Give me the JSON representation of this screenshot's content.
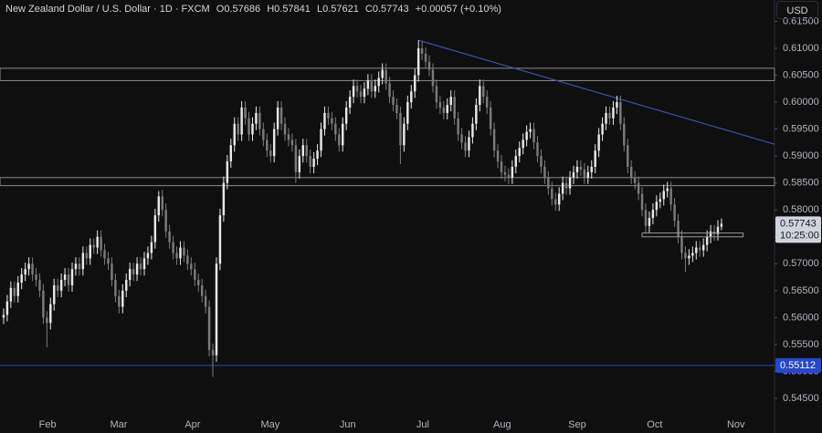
{
  "header": {
    "symbol": "New Zealand Dollar / U.S. Dollar · 1D · FXCM",
    "ohlc": [
      {
        "key": "O",
        "value": 0.57686
      },
      {
        "key": "H",
        "value": 0.57841
      },
      {
        "key": "L",
        "value": 0.57621
      },
      {
        "key": "C",
        "value": 0.57743
      }
    ],
    "change": "+0.00057 (+0.10%)",
    "currency": "USD"
  },
  "chart_data": {
    "type": "candlestick",
    "up_color": "#e8e8e8",
    "down_color": "#7b7b7b",
    "grid": false,
    "xlim": [
      -1,
      213.7
    ],
    "ylim": [
      0.53857,
      0.61897
    ],
    "xticks": [
      {
        "value": 12.2,
        "label": "Feb"
      },
      {
        "value": 31.9,
        "label": "Mar"
      },
      {
        "value": 52.4,
        "label": "Apr"
      },
      {
        "value": 73.9,
        "label": "May"
      },
      {
        "value": 95.4,
        "label": "Jun"
      },
      {
        "value": 116.2,
        "label": "Jul"
      },
      {
        "value": 138.2,
        "label": "Aug"
      },
      {
        "value": 159,
        "label": "Sep"
      },
      {
        "value": 180.5,
        "label": "Oct"
      },
      {
        "value": 203,
        "label": "Nov"
      }
    ],
    "yticks": [
      {
        "value": 0.545,
        "label": "0.54500"
      },
      {
        "value": 0.55,
        "label": "0.55000"
      },
      {
        "value": 0.555,
        "label": "0.55500"
      },
      {
        "value": 0.56,
        "label": "0.56000"
      },
      {
        "value": 0.565,
        "label": "0.56500"
      },
      {
        "value": 0.57,
        "label": "0.57000"
      },
      {
        "value": 0.575,
        "label": "0.57500"
      },
      {
        "value": 0.58,
        "label": "0.58000"
      },
      {
        "value": 0.585,
        "label": "0.58500"
      },
      {
        "value": 0.59,
        "label": "0.59000"
      },
      {
        "value": 0.595,
        "label": "0.59500"
      },
      {
        "value": 0.6,
        "label": "0.60000"
      },
      {
        "value": 0.605,
        "label": "0.60500"
      },
      {
        "value": 0.61,
        "label": "0.61000"
      },
      {
        "value": 0.615,
        "label": "0.61500"
      }
    ],
    "candles": [
      [
        0.56,
        0.5617,
        0.5588,
        0.5605
      ],
      [
        0.5605,
        0.5642,
        0.5593,
        0.563
      ],
      [
        0.563,
        0.5667,
        0.5618,
        0.5655
      ],
      [
        0.5655,
        0.5667,
        0.5628,
        0.564
      ],
      [
        0.564,
        0.5677,
        0.5628,
        0.5665
      ],
      [
        0.5665,
        0.5692,
        0.5653,
        0.568
      ],
      [
        0.568,
        0.5702,
        0.5668,
        0.569
      ],
      [
        0.569,
        0.5712,
        0.5678,
        0.57
      ],
      [
        0.57,
        0.5712,
        0.5668,
        0.568
      ],
      [
        0.568,
        0.5692,
        0.5658,
        0.567
      ],
      [
        0.567,
        0.5682,
        0.5638,
        0.565
      ],
      [
        0.565,
        0.5662,
        0.5588,
        0.56
      ],
      [
        0.56,
        0.5612,
        0.5545,
        0.559
      ],
      [
        0.559,
        0.5637,
        0.5578,
        0.5625
      ],
      [
        0.5625,
        0.5672,
        0.5613,
        0.566
      ],
      [
        0.566,
        0.5672,
        0.5638,
        0.565
      ],
      [
        0.565,
        0.5682,
        0.5638,
        0.567
      ],
      [
        0.567,
        0.5692,
        0.5658,
        0.568
      ],
      [
        0.568,
        0.5692,
        0.5648,
        0.566
      ],
      [
        0.566,
        0.5702,
        0.5648,
        0.569
      ],
      [
        0.569,
        0.5712,
        0.5678,
        0.57
      ],
      [
        0.57,
        0.5712,
        0.5678,
        0.569
      ],
      [
        0.569,
        0.5732,
        0.5678,
        0.572
      ],
      [
        0.572,
        0.5732,
        0.5698,
        0.571
      ],
      [
        0.571,
        0.5747,
        0.5698,
        0.5735
      ],
      [
        0.5735,
        0.5747,
        0.5718,
        0.573
      ],
      [
        0.573,
        0.5762,
        0.5718,
        0.575
      ],
      [
        0.575,
        0.5762,
        0.5713,
        0.5725
      ],
      [
        0.5725,
        0.5737,
        0.5698,
        0.571
      ],
      [
        0.571,
        0.5722,
        0.5688,
        0.57
      ],
      [
        0.57,
        0.5712,
        0.5658,
        0.567
      ],
      [
        0.567,
        0.5682,
        0.5628,
        0.564
      ],
      [
        0.564,
        0.5652,
        0.5608,
        0.562
      ],
      [
        0.562,
        0.5662,
        0.5608,
        0.565
      ],
      [
        0.565,
        0.5682,
        0.5638,
        0.567
      ],
      [
        0.567,
        0.5702,
        0.5658,
        0.569
      ],
      [
        0.569,
        0.5702,
        0.5668,
        0.568
      ],
      [
        0.568,
        0.5712,
        0.5668,
        0.57
      ],
      [
        0.57,
        0.5712,
        0.5678,
        0.569
      ],
      [
        0.569,
        0.5722,
        0.5678,
        0.571
      ],
      [
        0.571,
        0.5732,
        0.5698,
        0.572
      ],
      [
        0.572,
        0.5752,
        0.5708,
        0.574
      ],
      [
        0.574,
        0.5802,
        0.5728,
        0.579
      ],
      [
        0.579,
        0.5835,
        0.5778,
        0.5825
      ],
      [
        0.5825,
        0.5837,
        0.5788,
        0.58
      ],
      [
        0.58,
        0.5812,
        0.5748,
        0.576
      ],
      [
        0.576,
        0.5772,
        0.5728,
        0.574
      ],
      [
        0.574,
        0.5752,
        0.5708,
        0.572
      ],
      [
        0.572,
        0.5732,
        0.5698,
        0.571
      ],
      [
        0.571,
        0.5742,
        0.5698,
        0.573
      ],
      [
        0.573,
        0.5742,
        0.5703,
        0.5715
      ],
      [
        0.5715,
        0.5727,
        0.5688,
        0.57
      ],
      [
        0.57,
        0.5712,
        0.5678,
        0.569
      ],
      [
        0.569,
        0.5702,
        0.5658,
        0.567
      ],
      [
        0.567,
        0.5682,
        0.5648,
        0.566
      ],
      [
        0.566,
        0.5672,
        0.5628,
        0.564
      ],
      [
        0.564,
        0.5652,
        0.5608,
        0.562
      ],
      [
        0.562,
        0.5632,
        0.5528,
        0.554
      ],
      [
        0.554,
        0.5552,
        0.549,
        0.553
      ],
      [
        0.553,
        0.5712,
        0.5518,
        0.57
      ],
      [
        0.57,
        0.5802,
        0.5688,
        0.579
      ],
      [
        0.579,
        0.5862,
        0.5778,
        0.585
      ],
      [
        0.585,
        0.5902,
        0.5838,
        0.589
      ],
      [
        0.589,
        0.5932,
        0.5878,
        0.592
      ],
      [
        0.592,
        0.5972,
        0.5908,
        0.596
      ],
      [
        0.596,
        0.5972,
        0.5928,
        0.594
      ],
      [
        0.594,
        0.6002,
        0.5928,
        0.599
      ],
      [
        0.599,
        0.6002,
        0.5958,
        0.597
      ],
      [
        0.597,
        0.5982,
        0.5928,
        0.594
      ],
      [
        0.594,
        0.5972,
        0.5928,
        0.596
      ],
      [
        0.596,
        0.5992,
        0.5948,
        0.598
      ],
      [
        0.598,
        0.5992,
        0.5938,
        0.595
      ],
      [
        0.595,
        0.5962,
        0.5918,
        0.593
      ],
      [
        0.593,
        0.5942,
        0.5898,
        0.591
      ],
      [
        0.591,
        0.5922,
        0.5888,
        0.59
      ],
      [
        0.59,
        0.5962,
        0.5888,
        0.595
      ],
      [
        0.595,
        0.6002,
        0.5938,
        0.599
      ],
      [
        0.599,
        0.6002,
        0.5948,
        0.596
      ],
      [
        0.596,
        0.5972,
        0.5928,
        0.594
      ],
      [
        0.594,
        0.5952,
        0.5918,
        0.593
      ],
      [
        0.593,
        0.5942,
        0.5908,
        0.592
      ],
      [
        0.592,
        0.5932,
        0.585,
        0.587
      ],
      [
        0.587,
        0.5912,
        0.5858,
        0.59
      ],
      [
        0.59,
        0.5932,
        0.5888,
        0.592
      ],
      [
        0.592,
        0.5932,
        0.5888,
        0.59
      ],
      [
        0.59,
        0.5912,
        0.5868,
        0.588
      ],
      [
        0.588,
        0.5907,
        0.5868,
        0.5895
      ],
      [
        0.5895,
        0.5922,
        0.5883,
        0.591
      ],
      [
        0.591,
        0.5962,
        0.5898,
        0.595
      ],
      [
        0.595,
        0.5992,
        0.5938,
        0.598
      ],
      [
        0.598,
        0.5992,
        0.5958,
        0.597
      ],
      [
        0.597,
        0.5982,
        0.5948,
        0.596
      ],
      [
        0.596,
        0.5972,
        0.5928,
        0.594
      ],
      [
        0.594,
        0.5952,
        0.5908,
        0.592
      ],
      [
        0.592,
        0.5972,
        0.5908,
        0.596
      ],
      [
        0.596,
        0.6002,
        0.5948,
        0.599
      ],
      [
        0.599,
        0.6022,
        0.5978,
        0.601
      ],
      [
        0.601,
        0.6042,
        0.5998,
        0.603
      ],
      [
        0.603,
        0.6042,
        0.6008,
        0.602
      ],
      [
        0.602,
        0.6032,
        0.5998,
        0.601
      ],
      [
        0.601,
        0.6037,
        0.5998,
        0.6025
      ],
      [
        0.6025,
        0.6052,
        0.6013,
        0.604
      ],
      [
        0.604,
        0.6052,
        0.6008,
        0.602
      ],
      [
        0.602,
        0.6042,
        0.6008,
        0.603
      ],
      [
        0.603,
        0.6057,
        0.6018,
        0.6045
      ],
      [
        0.6045,
        0.6072,
        0.6033,
        0.606
      ],
      [
        0.606,
        0.6072,
        0.6023,
        0.6035
      ],
      [
        0.6035,
        0.6047,
        0.5998,
        0.601
      ],
      [
        0.601,
        0.6022,
        0.5983,
        0.5995
      ],
      [
        0.5995,
        0.6007,
        0.5968,
        0.598
      ],
      [
        0.598,
        0.5992,
        0.5885,
        0.592
      ],
      [
        0.592,
        0.5972,
        0.5908,
        0.596
      ],
      [
        0.596,
        0.6012,
        0.5948,
        0.6
      ],
      [
        0.6,
        0.6032,
        0.5988,
        0.602
      ],
      [
        0.602,
        0.6062,
        0.6008,
        0.605
      ],
      [
        0.605,
        0.6115,
        0.6038,
        0.61
      ],
      [
        0.61,
        0.6112,
        0.6078,
        0.609
      ],
      [
        0.609,
        0.6102,
        0.6063,
        0.6075
      ],
      [
        0.6075,
        0.6087,
        0.6048,
        0.606
      ],
      [
        0.606,
        0.6072,
        0.6018,
        0.603
      ],
      [
        0.603,
        0.6042,
        0.5988,
        0.6
      ],
      [
        0.6,
        0.6012,
        0.5978,
        0.599
      ],
      [
        0.599,
        0.6002,
        0.5968,
        0.598
      ],
      [
        0.598,
        0.6007,
        0.5968,
        0.5995
      ],
      [
        0.5995,
        0.6022,
        0.5983,
        0.601
      ],
      [
        0.601,
        0.6022,
        0.5958,
        0.597
      ],
      [
        0.597,
        0.5982,
        0.5928,
        0.594
      ],
      [
        0.594,
        0.5952,
        0.5913,
        0.5925
      ],
      [
        0.5925,
        0.5937,
        0.5898,
        0.591
      ],
      [
        0.591,
        0.5947,
        0.5898,
        0.5935
      ],
      [
        0.5935,
        0.5972,
        0.5923,
        0.596
      ],
      [
        0.596,
        0.6007,
        0.5948,
        0.5995
      ],
      [
        0.5995,
        0.6042,
        0.5983,
        0.603
      ],
      [
        0.603,
        0.6042,
        0.5998,
        0.601
      ],
      [
        0.601,
        0.6022,
        0.5978,
        0.599
      ],
      [
        0.599,
        0.6002,
        0.5938,
        0.595
      ],
      [
        0.595,
        0.5962,
        0.5898,
        0.591
      ],
      [
        0.591,
        0.5922,
        0.5878,
        0.589
      ],
      [
        0.589,
        0.5902,
        0.5858,
        0.587
      ],
      [
        0.587,
        0.5882,
        0.5853,
        0.5865
      ],
      [
        0.5865,
        0.5877,
        0.5848,
        0.586
      ],
      [
        0.586,
        0.5892,
        0.5848,
        0.588
      ],
      [
        0.588,
        0.5912,
        0.5868,
        0.59
      ],
      [
        0.59,
        0.5927,
        0.5888,
        0.5915
      ],
      [
        0.5915,
        0.5942,
        0.5903,
        0.593
      ],
      [
        0.593,
        0.5957,
        0.5918,
        0.5945
      ],
      [
        0.5945,
        0.5962,
        0.5933,
        0.595
      ],
      [
        0.595,
        0.5962,
        0.5913,
        0.5925
      ],
      [
        0.5925,
        0.5937,
        0.5888,
        0.59
      ],
      [
        0.59,
        0.5912,
        0.5868,
        0.588
      ],
      [
        0.588,
        0.5892,
        0.5848,
        0.586
      ],
      [
        0.586,
        0.5872,
        0.5828,
        0.584
      ],
      [
        0.584,
        0.5852,
        0.5808,
        0.582
      ],
      [
        0.582,
        0.5832,
        0.5798,
        0.581
      ],
      [
        0.581,
        0.5842,
        0.5798,
        0.583
      ],
      [
        0.583,
        0.5862,
        0.5818,
        0.585
      ],
      [
        0.585,
        0.5862,
        0.5828,
        0.584
      ],
      [
        0.584,
        0.5872,
        0.5828,
        0.586
      ],
      [
        0.586,
        0.5882,
        0.5848,
        0.587
      ],
      [
        0.587,
        0.5892,
        0.5858,
        0.588
      ],
      [
        0.588,
        0.5892,
        0.5863,
        0.5875
      ],
      [
        0.5875,
        0.5887,
        0.5848,
        0.586
      ],
      [
        0.586,
        0.5882,
        0.5848,
        0.587
      ],
      [
        0.587,
        0.5892,
        0.5858,
        0.588
      ],
      [
        0.588,
        0.5922,
        0.5868,
        0.591
      ],
      [
        0.591,
        0.5952,
        0.5898,
        0.594
      ],
      [
        0.594,
        0.5972,
        0.5928,
        0.596
      ],
      [
        0.596,
        0.5992,
        0.5948,
        0.598
      ],
      [
        0.598,
        0.5992,
        0.5958,
        0.597
      ],
      [
        0.597,
        0.6002,
        0.5958,
        0.599
      ],
      [
        0.599,
        0.6012,
        0.5978,
        0.6
      ],
      [
        0.6,
        0.6012,
        0.5948,
        0.596
      ],
      [
        0.596,
        0.5972,
        0.5908,
        0.592
      ],
      [
        0.592,
        0.5932,
        0.5868,
        0.588
      ],
      [
        0.588,
        0.5892,
        0.5848,
        0.586
      ],
      [
        0.586,
        0.5872,
        0.5838,
        0.585
      ],
      [
        0.585,
        0.5862,
        0.5818,
        0.583
      ],
      [
        0.583,
        0.5842,
        0.5788,
        0.58
      ],
      [
        0.58,
        0.5812,
        0.5758,
        0.577
      ],
      [
        0.577,
        0.5797,
        0.5758,
        0.5785
      ],
      [
        0.5785,
        0.5812,
        0.5773,
        0.58
      ],
      [
        0.58,
        0.5827,
        0.5788,
        0.5815
      ],
      [
        0.5815,
        0.5832,
        0.5803,
        0.582
      ],
      [
        0.582,
        0.5847,
        0.5808,
        0.5835
      ],
      [
        0.5835,
        0.5852,
        0.5823,
        0.584
      ],
      [
        0.584,
        0.5852,
        0.5798,
        0.581
      ],
      [
        0.581,
        0.5822,
        0.5768,
        0.578
      ],
      [
        0.578,
        0.5792,
        0.5738,
        0.575
      ],
      [
        0.575,
        0.5762,
        0.5708,
        0.572
      ],
      [
        0.572,
        0.5732,
        0.5685,
        0.571
      ],
      [
        0.571,
        0.5727,
        0.5698,
        0.5715
      ],
      [
        0.5715,
        0.5732,
        0.5703,
        0.572
      ],
      [
        0.572,
        0.5742,
        0.5708,
        0.573
      ],
      [
        0.573,
        0.5742,
        0.5713,
        0.5725
      ],
      [
        0.5725,
        0.5747,
        0.5713,
        0.5735
      ],
      [
        0.5735,
        0.5762,
        0.5723,
        0.575
      ],
      [
        0.575,
        0.5772,
        0.5738,
        0.576
      ],
      [
        0.576,
        0.5772,
        0.5743,
        0.5755
      ],
      [
        0.5755,
        0.5781,
        0.5743,
        0.57686
      ],
      [
        0.57686,
        0.57841,
        0.57621,
        0.57743
      ]
    ],
    "zones": [
      {
        "y": [
          0.6063,
          0.604
        ],
        "color": "#8a8a8a"
      },
      {
        "y": [
          0.586,
          0.5845
        ],
        "color": "#8a8a8a"
      }
    ],
    "box": {
      "x": [
        177,
        205
      ],
      "y": [
        0.5757,
        0.575
      ],
      "color": "#9a9a9a"
    },
    "trendline": {
      "x": [
        115,
        213.7
      ],
      "y": [
        0.6115,
        0.5922
      ],
      "color": "#3d51a3"
    },
    "level": {
      "value": 0.55112,
      "color": "#2547c9"
    },
    "countdown": "10:25:00"
  }
}
